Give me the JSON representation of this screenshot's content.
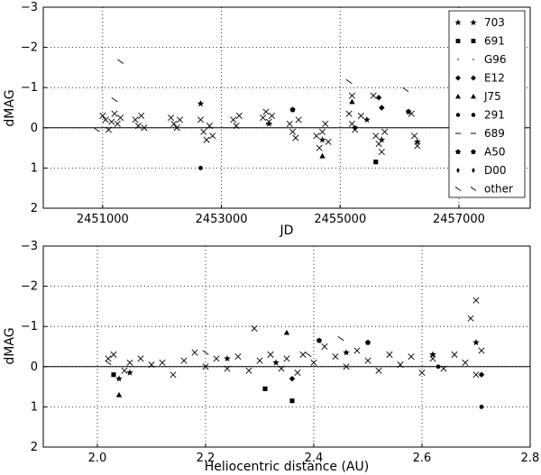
{
  "chart_data": [
    {
      "type": "scatter",
      "xlabel": "JD",
      "ylabel": "dMAG",
      "xlim": [
        2450000,
        2458200
      ],
      "ylim": [
        2,
        -3
      ],
      "xticks": [
        "2451000",
        "2453000",
        "2455000",
        "2457000"
      ],
      "xtick_values": [
        2451000,
        2453000,
        2455000,
        2457000
      ],
      "yticks": [
        "−3",
        "−2",
        "−1",
        "0",
        "1",
        "2"
      ],
      "ytick_values": [
        -3,
        -2,
        -1,
        0,
        1,
        2
      ],
      "grid": true,
      "legend_placement": "top-right",
      "legend": [
        {
          "label": "703",
          "marker": "star"
        },
        {
          "label": "691",
          "marker": "square"
        },
        {
          "label": "G96",
          "marker": "point"
        },
        {
          "label": "E12",
          "marker": "diamond"
        },
        {
          "label": "J75",
          "marker": "triangle"
        },
        {
          "label": "291",
          "marker": "circle"
        },
        {
          "label": "689",
          "marker": "hline"
        },
        {
          "label": "A50",
          "marker": "pentagon"
        },
        {
          "label": "D00",
          "marker": "thin-diamond"
        },
        {
          "label": "other",
          "marker": "tick"
        }
      ],
      "series": [
        {
          "marker": "x",
          "points": [
            [
              2451000,
              -0.3
            ],
            [
              2451050,
              -0.2
            ],
            [
              2451100,
              0.05
            ],
            [
              2451150,
              -0.15
            ],
            [
              2451200,
              -0.35
            ],
            [
              2451250,
              -0.1
            ],
            [
              2451300,
              -0.25
            ],
            [
              2451550,
              -0.2
            ],
            [
              2451600,
              -0.05
            ],
            [
              2451650,
              -0.3
            ],
            [
              2451700,
              0.0
            ],
            [
              2452150,
              -0.25
            ],
            [
              2452200,
              -0.1
            ],
            [
              2452250,
              0.0
            ],
            [
              2452300,
              -0.2
            ],
            [
              2452650,
              -0.2
            ],
            [
              2452700,
              0.1
            ],
            [
              2452750,
              0.3
            ],
            [
              2452800,
              -0.05
            ],
            [
              2452850,
              0.2
            ],
            [
              2453200,
              -0.2
            ],
            [
              2453250,
              -0.05
            ],
            [
              2453300,
              -0.3
            ],
            [
              2453700,
              -0.25
            ],
            [
              2453750,
              -0.4
            ],
            [
              2453800,
              -0.15
            ],
            [
              2453850,
              -0.3
            ],
            [
              2454150,
              -0.1
            ],
            [
              2454200,
              0.1
            ],
            [
              2454250,
              0.25
            ],
            [
              2454300,
              -0.2
            ],
            [
              2454600,
              0.2
            ],
            [
              2454650,
              0.5
            ],
            [
              2454700,
              0.1
            ],
            [
              2454750,
              -0.1
            ],
            [
              2454800,
              0.35
            ],
            [
              2455150,
              -0.35
            ],
            [
              2455200,
              -0.1
            ],
            [
              2455250,
              0.05
            ],
            [
              2455350,
              -0.3
            ],
            [
              2455600,
              0.2
            ],
            [
              2455650,
              0.4
            ],
            [
              2455700,
              0.6
            ],
            [
              2455750,
              0.1
            ],
            [
              2456200,
              -0.35
            ],
            [
              2456250,
              0.2
            ],
            [
              2456300,
              0.45
            ],
            [
              2455560,
              -0.8
            ],
            [
              2455200,
              -0.8
            ]
          ]
        },
        {
          "marker": "star",
          "points": [
            [
              2452650,
              -0.6
            ],
            [
              2453800,
              -0.1
            ],
            [
              2454700,
              0.3
            ],
            [
              2455450,
              -0.2
            ],
            [
              2455700,
              0.3
            ],
            [
              2456300,
              0.35
            ]
          ]
        },
        {
          "marker": "square",
          "points": [
            [
              2455600,
              0.85
            ]
          ]
        },
        {
          "marker": "triangle",
          "points": [
            [
              2454700,
              0.7
            ],
            [
              2455200,
              -0.65
            ]
          ]
        },
        {
          "marker": "circle",
          "points": [
            [
              2452650,
              1.0
            ],
            [
              2455250,
              0.0
            ]
          ]
        },
        {
          "marker": "pentagon",
          "points": [
            [
              2454200,
              -0.45
            ],
            [
              2456150,
              -0.4
            ]
          ]
        },
        {
          "marker": "diamond",
          "points": [
            [
              2455650,
              -0.75
            ],
            [
              2455700,
              -0.5
            ]
          ]
        },
        {
          "marker": "tick",
          "points": [
            [
              2450900,
              0.05
            ],
            [
              2451300,
              -1.65
            ],
            [
              2455150,
              -1.15
            ],
            [
              2456100,
              -0.95
            ],
            [
              2451200,
              -0.7
            ]
          ]
        }
      ]
    },
    {
      "type": "scatter",
      "xlabel": "Heliocentric distance (AU)",
      "ylabel": "dMAG",
      "xlim": [
        1.9,
        2.8
      ],
      "ylim": [
        2,
        -3
      ],
      "xticks": [
        "2.0",
        "2.2",
        "2.4",
        "2.6",
        "2.8"
      ],
      "xtick_values": [
        2.0,
        2.2,
        2.4,
        2.6,
        2.8
      ],
      "yticks": [
        "−3",
        "−2",
        "−1",
        "0",
        "1",
        "2"
      ],
      "ytick_values": [
        -3,
        -2,
        -1,
        0,
        1,
        2
      ],
      "grid": true,
      "series": [
        {
          "marker": "x",
          "points": [
            [
              2.02,
              -0.2
            ],
            [
              2.03,
              -0.3
            ],
            [
              2.05,
              0.1
            ],
            [
              2.06,
              -0.1
            ],
            [
              2.08,
              -0.2
            ],
            [
              2.1,
              -0.05
            ],
            [
              2.12,
              -0.1
            ],
            [
              2.14,
              0.2
            ],
            [
              2.16,
              -0.15
            ],
            [
              2.18,
              -0.35
            ],
            [
              2.2,
              0.0
            ],
            [
              2.22,
              -0.2
            ],
            [
              2.24,
              0.05
            ],
            [
              2.26,
              -0.25
            ],
            [
              2.28,
              0.1
            ],
            [
              2.29,
              -0.95
            ],
            [
              2.3,
              -0.15
            ],
            [
              2.32,
              -0.3
            ],
            [
              2.34,
              0.05
            ],
            [
              2.35,
              -0.2
            ],
            [
              2.37,
              0.15
            ],
            [
              2.38,
              -0.3
            ],
            [
              2.4,
              -0.1
            ],
            [
              2.42,
              -0.5
            ],
            [
              2.44,
              -0.25
            ],
            [
              2.46,
              0.0
            ],
            [
              2.48,
              -0.4
            ],
            [
              2.5,
              -0.15
            ],
            [
              2.52,
              0.1
            ],
            [
              2.54,
              -0.3
            ],
            [
              2.56,
              -0.05
            ],
            [
              2.58,
              -0.25
            ],
            [
              2.6,
              0.15
            ],
            [
              2.62,
              -0.2
            ],
            [
              2.64,
              0.05
            ],
            [
              2.66,
              -0.3
            ],
            [
              2.68,
              -0.1
            ],
            [
              2.7,
              0.2
            ],
            [
              2.7,
              -1.65
            ],
            [
              2.69,
              -1.2
            ],
            [
              2.71,
              -0.4
            ]
          ]
        },
        {
          "marker": "star",
          "points": [
            [
              2.04,
              0.3
            ],
            [
              2.06,
              0.15
            ],
            [
              2.24,
              -0.2
            ],
            [
              2.33,
              -0.1
            ],
            [
              2.46,
              -0.35
            ],
            [
              2.62,
              -0.3
            ],
            [
              2.7,
              -0.6
            ]
          ]
        },
        {
          "marker": "square",
          "points": [
            [
              2.31,
              0.55
            ],
            [
              2.36,
              0.85
            ],
            [
              2.03,
              0.2
            ]
          ]
        },
        {
          "marker": "triangle",
          "points": [
            [
              2.04,
              0.7
            ],
            [
              2.35,
              -0.85
            ]
          ]
        },
        {
          "marker": "circle",
          "points": [
            [
              2.71,
              1.0
            ],
            [
              2.63,
              0.0
            ]
          ]
        },
        {
          "marker": "pentagon",
          "points": [
            [
              2.41,
              -0.65
            ],
            [
              2.5,
              -0.6
            ]
          ]
        },
        {
          "marker": "diamond",
          "points": [
            [
              2.36,
              0.3
            ],
            [
              2.71,
              0.2
            ]
          ]
        },
        {
          "marker": "tick",
          "points": [
            [
              2.02,
              -0.1
            ],
            [
              2.2,
              -0.35
            ],
            [
              2.39,
              -0.3
            ],
            [
              2.45,
              -0.7
            ]
          ]
        }
      ]
    }
  ]
}
